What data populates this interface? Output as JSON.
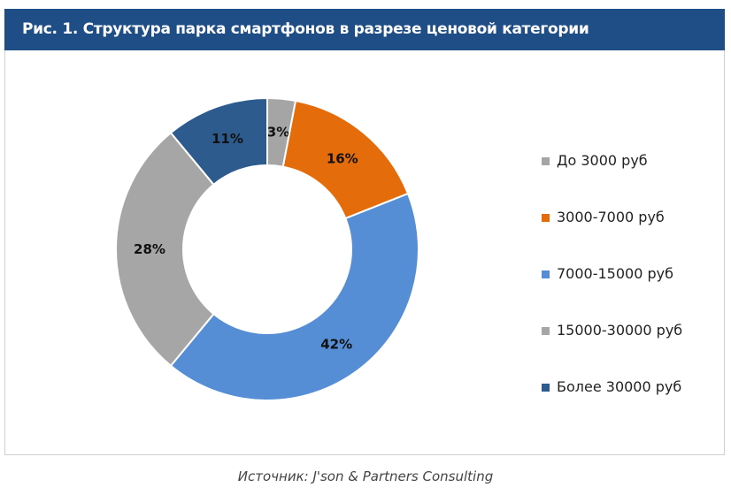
{
  "title": "Рис. 1.  Структура парка смартфонов в разрезе ценовой категории",
  "source": "Источник: J'son & Partners Consulting",
  "chart_data": {
    "type": "pie",
    "subtype": "donut",
    "title": "Рис. 1.  Структура парка смартфонов в разрезе ценовой категории",
    "categories": [
      "До 3000 руб",
      "3000-7000  руб",
      "7000-15000  руб",
      "15000-30000  руб",
      "Более 30000 руб"
    ],
    "values": [
      3,
      16,
      42,
      28,
      11
    ],
    "labels": [
      "3%",
      "16%",
      "42%",
      "28%",
      "11%"
    ],
    "colors": [
      "#a5a5a5",
      "#e46c0a",
      "#558ed5",
      "#a6a6a6",
      "#2e5b8e"
    ],
    "legend_position": "right"
  }
}
